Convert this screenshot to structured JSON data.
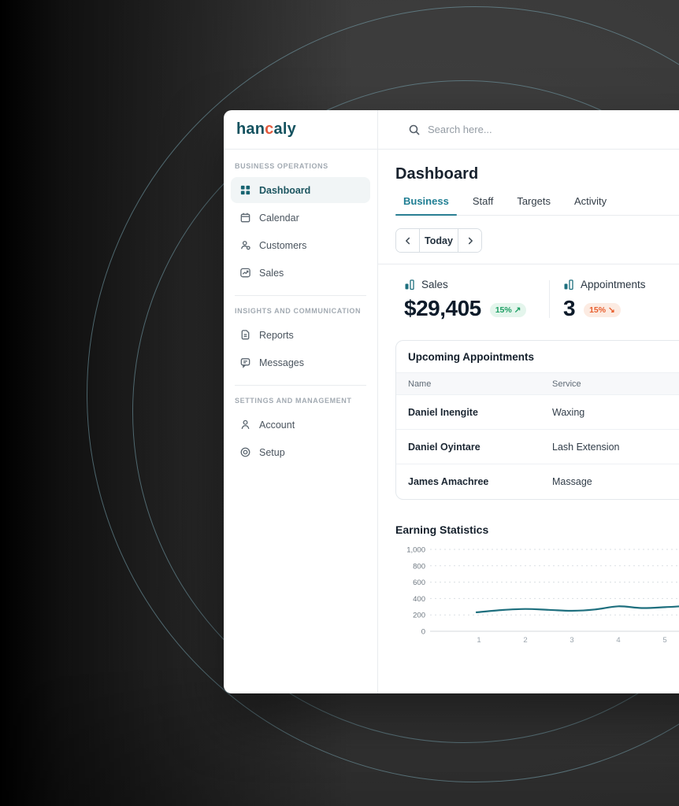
{
  "brand": {
    "part1": "han",
    "part2": "c",
    "part3": "aly"
  },
  "search": {
    "placeholder": "Search here..."
  },
  "sidebar": {
    "sections": [
      {
        "label": "BUSINESS OPERATIONS",
        "items": [
          {
            "label": "Dashboard",
            "icon": "grid-icon",
            "active": true
          },
          {
            "label": "Calendar",
            "icon": "calendar-icon",
            "active": false
          },
          {
            "label": "Customers",
            "icon": "customers-icon",
            "active": false
          },
          {
            "label": "Sales",
            "icon": "sales-trend-icon",
            "active": false
          }
        ]
      },
      {
        "label": "INSIGHTS AND COMMUNICATION",
        "items": [
          {
            "label": "Reports",
            "icon": "report-icon",
            "active": false
          },
          {
            "label": "Messages",
            "icon": "message-icon",
            "active": false
          }
        ]
      },
      {
        "label": "SETTINGS AND MANAGEMENT",
        "items": [
          {
            "label": "Account",
            "icon": "account-icon",
            "active": false
          },
          {
            "label": "Setup",
            "icon": "setup-icon",
            "active": false
          }
        ]
      }
    ]
  },
  "page": {
    "title": "Dashboard"
  },
  "tabs": [
    {
      "label": "Business",
      "active": true
    },
    {
      "label": "Staff",
      "active": false
    },
    {
      "label": "Targets",
      "active": false
    },
    {
      "label": "Activity",
      "active": false
    }
  ],
  "date_nav": {
    "today_label": "Today"
  },
  "stats": {
    "sales": {
      "label": "Sales",
      "value": "$29,405",
      "change": "15%",
      "arrow": "↗",
      "direction": "up"
    },
    "appointments": {
      "label": "Appointments",
      "value": "3",
      "change": "15%",
      "arrow": "↘",
      "direction": "down"
    }
  },
  "appointments_table": {
    "title": "Upcoming Appointments",
    "columns": [
      "Name",
      "Service"
    ],
    "rows": [
      {
        "name": "Daniel Inengite",
        "service": "Waxing"
      },
      {
        "name": "Daniel Oyintare",
        "service": "Lash Extension"
      },
      {
        "name": "James Amachree",
        "service": "Massage"
      }
    ]
  },
  "chart_data": {
    "type": "line",
    "title": "Earning Statistics",
    "x": [
      0.95,
      1.5,
      2,
      2.5,
      3,
      3.5,
      4,
      4.5,
      5,
      5.35
    ],
    "values": [
      232,
      260,
      272,
      262,
      250,
      266,
      305,
      284,
      294,
      306
    ],
    "xticks": [
      1,
      2,
      3,
      4,
      5
    ],
    "ytick_values": [
      0,
      200,
      400,
      600,
      800,
      1000
    ],
    "ytick_labels": [
      "0",
      "200",
      "400",
      "600",
      "800",
      "1,000"
    ],
    "ylim": [
      0,
      1000
    ],
    "xlabel": "",
    "ylabel": "",
    "grid": "dashed-horizontal",
    "legend": "none",
    "line_color": "#1e6f7e"
  },
  "colors": {
    "accent_teal": "#1f7e93",
    "brand_teal": "#14525f",
    "brand_orange": "#e2593c",
    "positive": "#1c9e63",
    "negative": "#e85f2f",
    "chart_line": "#1e6f7e"
  }
}
